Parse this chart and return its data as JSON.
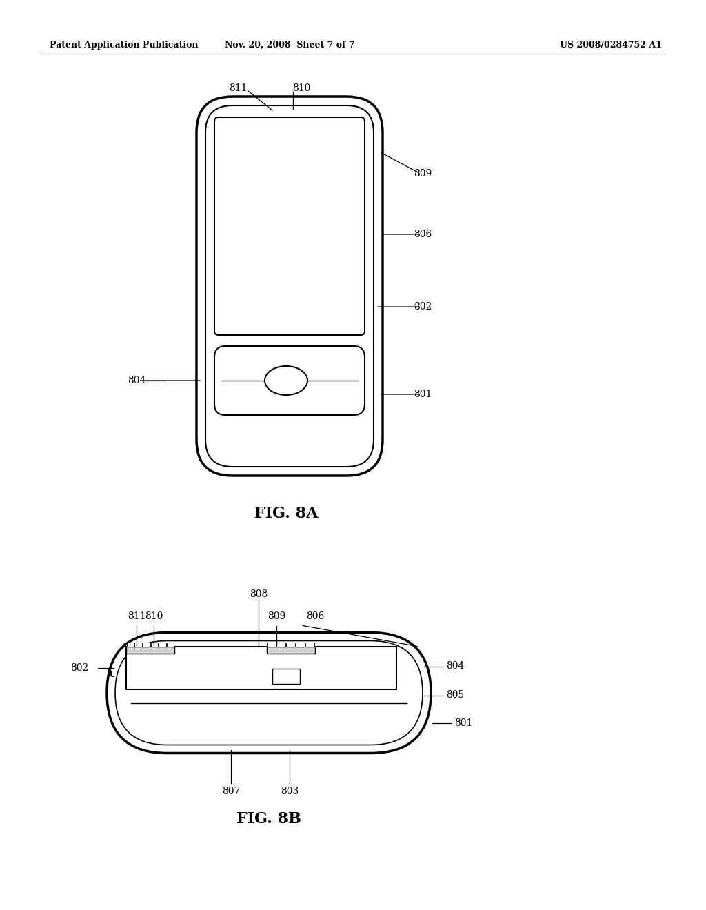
{
  "bg_color": "#ffffff",
  "header_left": "Patent Application Publication",
  "header_center": "Nov. 20, 2008  Sheet 7 of 7",
  "header_right": "US 2008/0284752 A1",
  "fig8a_label": "FIG. 8A",
  "fig8b_label": "FIG. 8B",
  "line_color": "#000000"
}
